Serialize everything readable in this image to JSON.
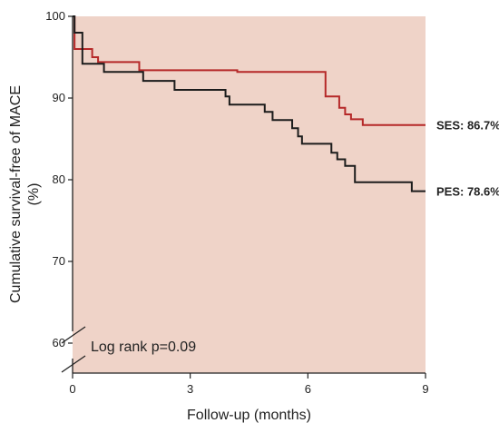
{
  "chart_data": {
    "type": "line",
    "step": true,
    "xlabel": "Follow-up (months)",
    "ylabel": "Cumulative survival-free of MACE",
    "ylabel_unit": "(%)",
    "xlim": [
      0,
      9
    ],
    "ylim": [
      60,
      100
    ],
    "axis_break": true,
    "x_ticks": [
      "0",
      "3",
      "6",
      "9"
    ],
    "y_ticks": [
      "60",
      "70",
      "80",
      "90",
      "100"
    ],
    "annotation": "Log rank p=0.09",
    "background_color": "#efd3c8",
    "series": [
      {
        "name": "SES",
        "end_label": "SES: 86.7%",
        "color": "#b52828",
        "points": [
          [
            0,
            100
          ],
          [
            0.05,
            96.0
          ],
          [
            0.5,
            95.0
          ],
          [
            0.65,
            94.4
          ],
          [
            1.7,
            93.4
          ],
          [
            4.2,
            93.2
          ],
          [
            6.45,
            90.2
          ],
          [
            6.8,
            88.8
          ],
          [
            6.95,
            88.0
          ],
          [
            7.1,
            87.4
          ],
          [
            7.4,
            86.7
          ],
          [
            9.0,
            86.7
          ]
        ]
      },
      {
        "name": "PES",
        "end_label": "PES: 78.6%",
        "color": "#1c1c1c",
        "points": [
          [
            0,
            100
          ],
          [
            0.05,
            98.0
          ],
          [
            0.25,
            94.2
          ],
          [
            0.8,
            93.2
          ],
          [
            1.8,
            92.1
          ],
          [
            2.6,
            91.0
          ],
          [
            3.9,
            90.2
          ],
          [
            4.0,
            89.2
          ],
          [
            4.9,
            88.3
          ],
          [
            5.1,
            87.3
          ],
          [
            5.6,
            86.3
          ],
          [
            5.75,
            85.3
          ],
          [
            5.85,
            84.4
          ],
          [
            6.6,
            83.3
          ],
          [
            6.75,
            82.5
          ],
          [
            6.95,
            81.7
          ],
          [
            7.2,
            79.7
          ],
          [
            8.65,
            78.6
          ],
          [
            9.0,
            78.6
          ]
        ]
      }
    ]
  }
}
